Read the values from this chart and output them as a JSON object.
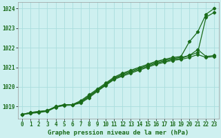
{
  "background_color": "#cef0f0",
  "grid_color": "#aadddd",
  "line_color": "#1a6b1a",
  "xlabel": "Graphe pression niveau de la mer (hPa)",
  "xlim": [
    -0.5,
    23.5
  ],
  "ylim": [
    1018.4,
    1024.3
  ],
  "yticks": [
    1019,
    1020,
    1021,
    1022,
    1023,
    1024
  ],
  "xticks": [
    0,
    1,
    2,
    3,
    4,
    5,
    6,
    7,
    8,
    9,
    10,
    11,
    12,
    13,
    14,
    15,
    16,
    17,
    18,
    19,
    20,
    21,
    22,
    23
  ],
  "series": [
    [
      1018.6,
      1018.7,
      1018.75,
      1018.8,
      1019.0,
      1019.1,
      1019.1,
      1019.3,
      1019.6,
      1019.9,
      1020.2,
      1020.5,
      1020.7,
      1020.85,
      1021.0,
      1021.15,
      1021.3,
      1021.4,
      1021.5,
      1021.55,
      1022.3,
      1022.8,
      1023.7,
      1024.0
    ],
    [
      1018.6,
      1018.7,
      1018.75,
      1018.8,
      1019.0,
      1019.1,
      1019.1,
      1019.25,
      1019.55,
      1019.85,
      1020.15,
      1020.45,
      1020.65,
      1020.8,
      1020.95,
      1021.1,
      1021.25,
      1021.35,
      1021.45,
      1021.5,
      1021.6,
      1021.75,
      1023.55,
      1023.8
    ],
    [
      1018.6,
      1018.68,
      1018.73,
      1018.78,
      1018.98,
      1019.08,
      1019.1,
      1019.22,
      1019.5,
      1019.82,
      1020.12,
      1020.42,
      1020.6,
      1020.75,
      1020.9,
      1021.05,
      1021.2,
      1021.3,
      1021.4,
      1021.45,
      1021.6,
      1021.9,
      1021.55,
      1021.6
    ],
    [
      1018.6,
      1018.65,
      1018.7,
      1018.76,
      1018.96,
      1019.06,
      1019.08,
      1019.18,
      1019.45,
      1019.78,
      1020.08,
      1020.38,
      1020.55,
      1020.7,
      1020.85,
      1021.0,
      1021.15,
      1021.25,
      1021.35,
      1021.4,
      1021.5,
      1021.65,
      1021.5,
      1021.55
    ]
  ],
  "marker": "D",
  "markersize": 2.2,
  "linewidth": 0.9,
  "xlabel_fontsize": 6.5,
  "tick_fontsize": 5.5
}
